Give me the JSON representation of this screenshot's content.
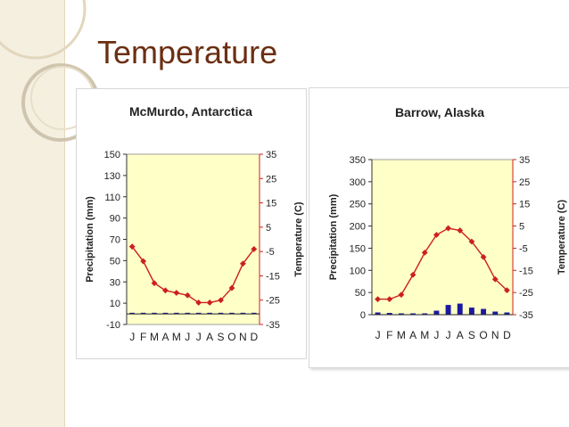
{
  "slide": {
    "title": "Temperature"
  },
  "colors": {
    "title": "#6b2f12",
    "plot_bg": "#ffffc8",
    "temp_line": "#cc2020",
    "precip_bar": "#1a1aa0",
    "band": "#f5efe0"
  },
  "chart_data": [
    {
      "type": "bar+line",
      "title": "McMurdo, Antarctica",
      "categories": [
        "J",
        "F",
        "M",
        "A",
        "M",
        "J",
        "J",
        "A",
        "S",
        "O",
        "N",
        "D"
      ],
      "ylabel": "Precipitation (mm)",
      "y2label": "Temperature (C)",
      "ylim": [
        -10,
        150
      ],
      "y2lim": [
        -35,
        35
      ],
      "yticks": [
        "150",
        "130",
        "110",
        "90",
        "70",
        "50",
        "30",
        "10",
        "-10"
      ],
      "y2ticks": [
        "35",
        "25",
        "15",
        "5",
        "-5",
        "-15",
        "-25",
        "-35"
      ],
      "series": [
        {
          "name": "Precipitation (mm)",
          "axis": "left",
          "kind": "bar",
          "values": [
            1,
            1,
            1,
            1,
            1,
            1,
            1,
            1,
            1,
            1,
            1,
            1
          ]
        },
        {
          "name": "Temperature (C)",
          "axis": "right",
          "kind": "line",
          "values": [
            -3,
            -9,
            -18,
            -21,
            -22,
            -23,
            -26,
            -26,
            -25,
            -20,
            -10,
            -4
          ]
        }
      ]
    },
    {
      "type": "bar+line",
      "title": "Barrow, Alaska",
      "categories": [
        "J",
        "F",
        "M",
        "A",
        "M",
        "J",
        "J",
        "A",
        "S",
        "O",
        "N",
        "D"
      ],
      "ylabel": "Precipitation (mm)",
      "y2label": "Temperature (C)",
      "ylim": [
        0,
        350
      ],
      "y2lim": [
        -35,
        35
      ],
      "yticks": [
        "350",
        "300",
        "250",
        "200",
        "150",
        "100",
        "50",
        "0"
      ],
      "y2ticks": [
        "35",
        "25",
        "15",
        "5",
        "-5",
        "-15",
        "-25",
        "-35"
      ],
      "series": [
        {
          "name": "Precipitation (mm)",
          "axis": "left",
          "kind": "bar",
          "values": [
            5,
            4,
            3,
            3,
            3,
            9,
            22,
            25,
            16,
            13,
            7,
            5
          ]
        },
        {
          "name": "Temperature (C)",
          "axis": "right",
          "kind": "line",
          "values": [
            -28,
            -28,
            -26,
            -17,
            -7,
            1,
            4,
            3,
            -2,
            -9,
            -19,
            -24
          ]
        }
      ]
    }
  ]
}
